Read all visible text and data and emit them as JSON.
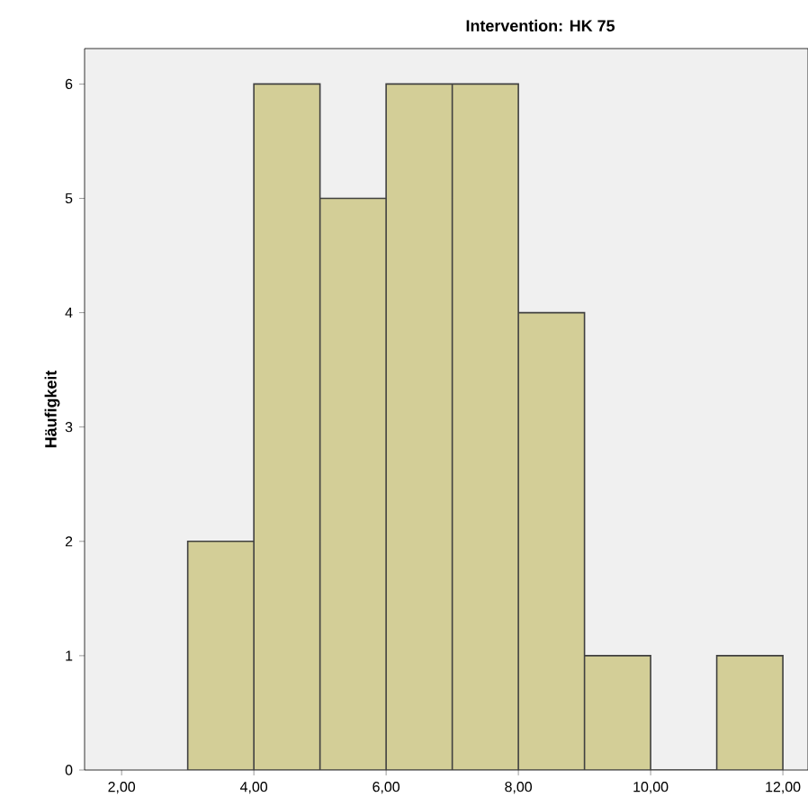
{
  "chart_data": {
    "type": "histogram",
    "title": "Intervention: HK 75",
    "ylabel": "Häufigkeit",
    "bins": [
      3,
      4,
      5,
      6,
      7,
      8,
      9,
      10,
      11,
      12
    ],
    "values": [
      2,
      6,
      5,
      6,
      6,
      4,
      1,
      0,
      1
    ],
    "color": "#d3ce97",
    "xlim": [
      1.44,
      12.38
    ],
    "ylim": [
      0,
      6.31
    ],
    "xticks": [
      {
        "value": 2,
        "label": "2,00"
      },
      {
        "value": 4,
        "label": "4,00"
      },
      {
        "value": 6,
        "label": "6,00"
      },
      {
        "value": 8,
        "label": "8,00"
      },
      {
        "value": 10,
        "label": "10,00"
      },
      {
        "value": 12,
        "label": "12,00"
      }
    ],
    "yticks": [
      0,
      1,
      2,
      3,
      4,
      5,
      6
    ]
  }
}
